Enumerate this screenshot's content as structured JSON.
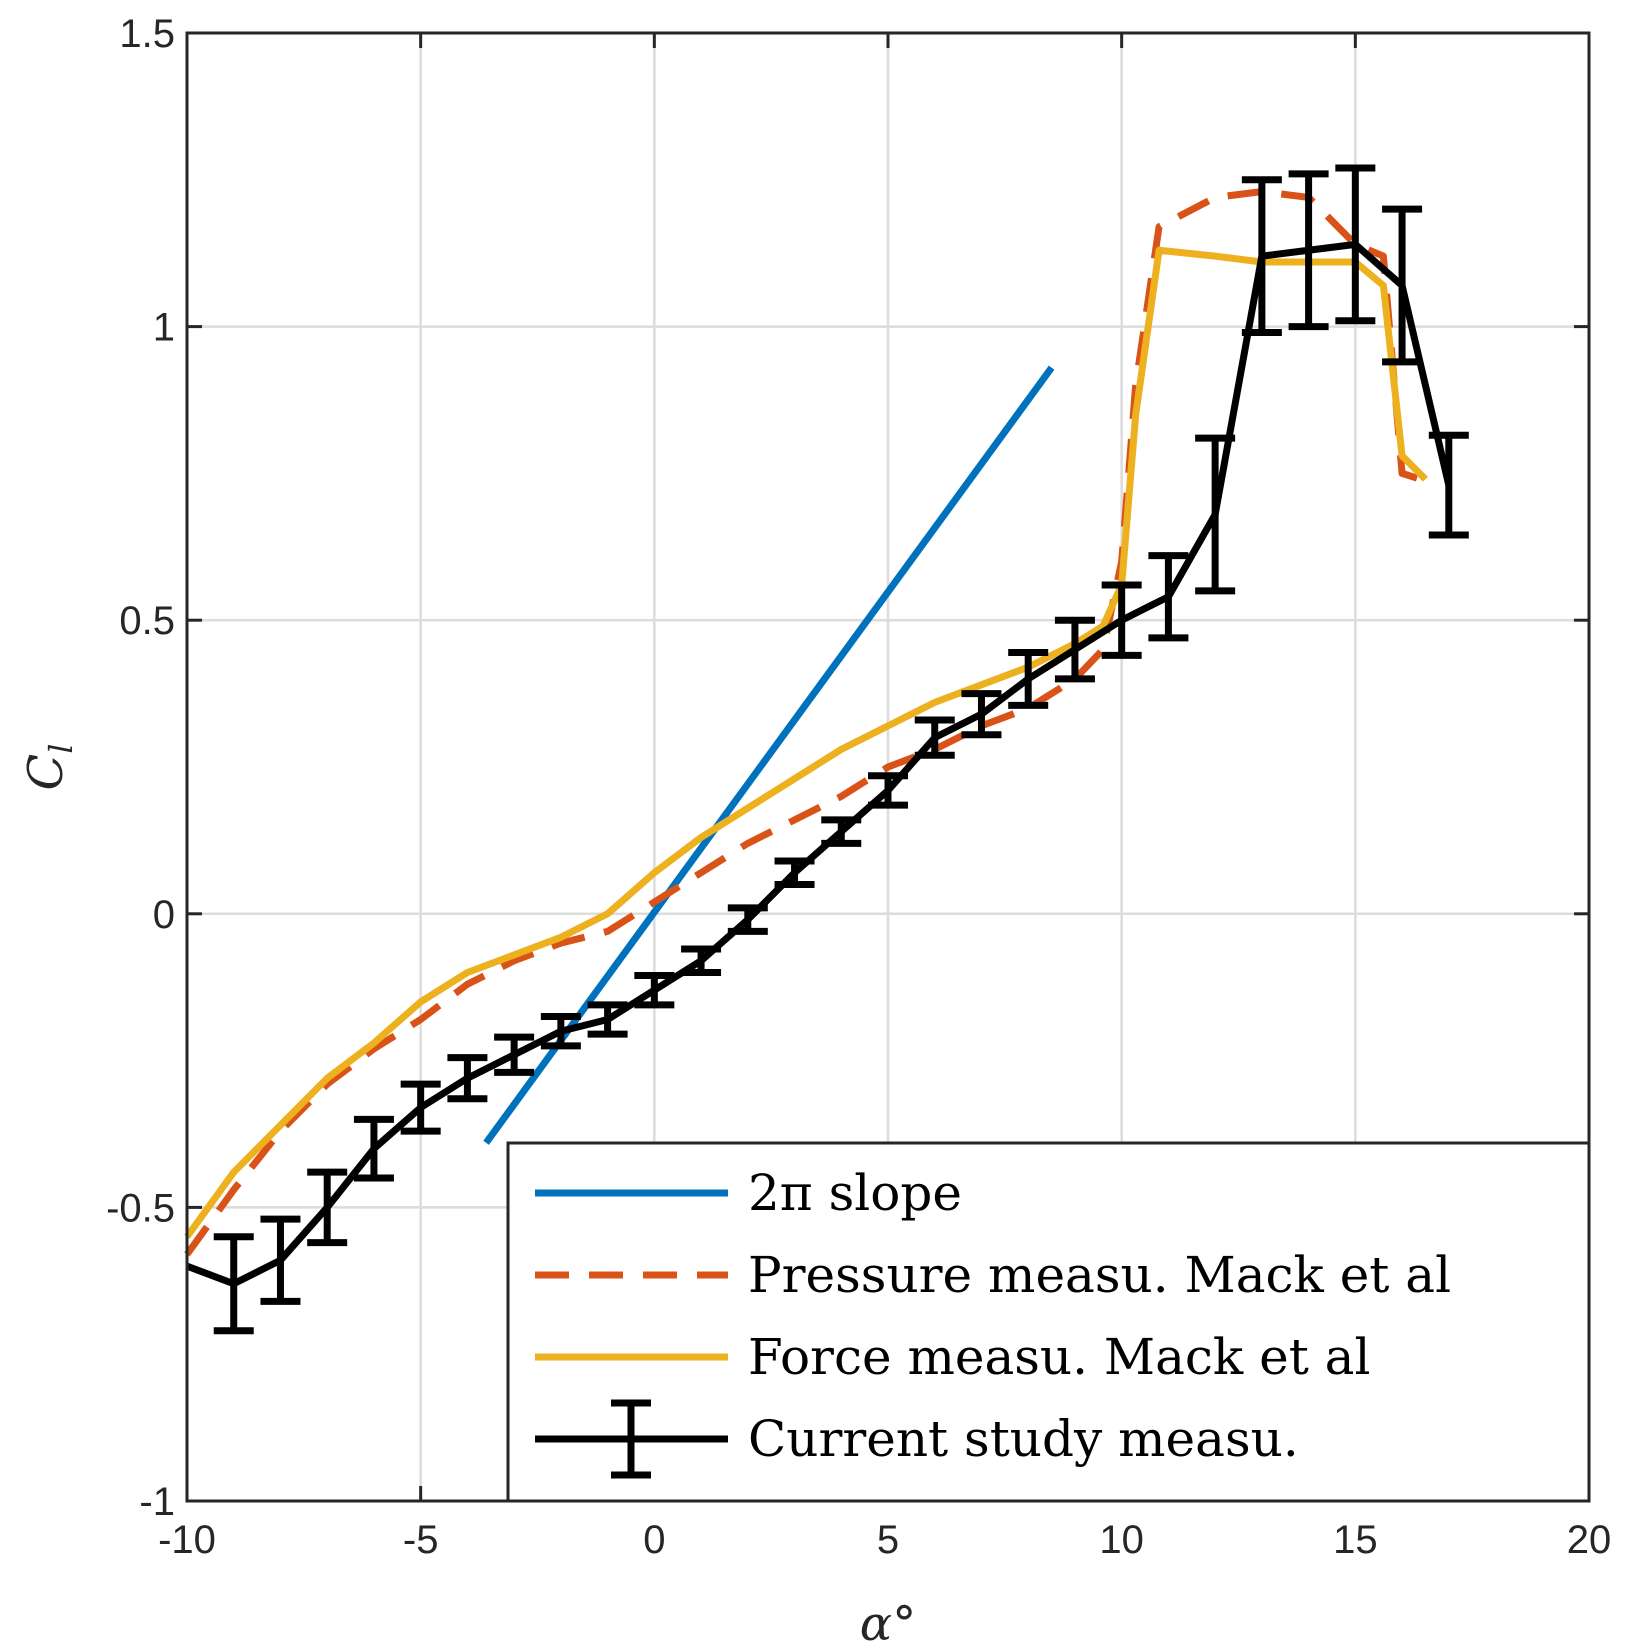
{
  "chart_data": {
    "type": "line",
    "title": "",
    "xlabel": "α°",
    "ylabel": "C_l",
    "ylabel_main": "C",
    "ylabel_sub": "l",
    "xlim": [
      -10,
      20
    ],
    "ylim": [
      -1,
      1.5
    ],
    "grid": true,
    "legend_position": "bottom-right",
    "xticks": [
      -10,
      -5,
      0,
      5,
      10,
      15,
      20
    ],
    "yticks": [
      -1,
      -0.5,
      0,
      0.5,
      1,
      1.5
    ],
    "xtick_labels": [
      "-10",
      "-5",
      "0",
      "5",
      "10",
      "15",
      "20"
    ],
    "ytick_labels": [
      "-1",
      "-0.5",
      "0",
      "0.5",
      "1",
      "1.5"
    ],
    "series": [
      {
        "name": "2π slope",
        "color": "#0072BD",
        "style": "solid",
        "x": [
          -3.6,
          8.5
        ],
        "y": [
          -0.39,
          0.93
        ]
      },
      {
        "name": "Pressure measu. Mack et al",
        "color": "#D95319",
        "style": "dashed",
        "x": [
          -10,
          -9,
          -8,
          -7,
          -6,
          -5,
          -4,
          -3,
          -2,
          -1,
          0,
          1,
          2,
          3,
          4,
          5,
          6,
          7,
          8,
          9,
          9.6,
          10,
          10.3,
          10.8,
          12,
          13,
          14,
          15,
          15.6,
          16,
          16.4
        ],
        "y": [
          -0.58,
          -0.47,
          -0.37,
          -0.29,
          -0.23,
          -0.18,
          -0.12,
          -0.08,
          -0.05,
          -0.03,
          0.02,
          0.07,
          0.12,
          0.16,
          0.2,
          0.25,
          0.28,
          0.32,
          0.35,
          0.4,
          0.45,
          0.6,
          0.9,
          1.17,
          1.22,
          1.23,
          1.22,
          1.14,
          1.12,
          0.75,
          0.74
        ]
      },
      {
        "name": "Force measu. Mack et al",
        "color": "#EDB120",
        "style": "solid",
        "x": [
          -10,
          -9,
          -8,
          -7,
          -6,
          -5,
          -4,
          -3,
          -2,
          -1,
          0,
          1,
          2,
          3,
          4,
          5,
          6,
          7,
          8,
          9,
          9.6,
          10,
          10.3,
          10.8,
          12,
          13,
          14,
          15,
          15.6,
          16,
          16.5
        ],
        "y": [
          -0.55,
          -0.44,
          -0.36,
          -0.28,
          -0.22,
          -0.15,
          -0.1,
          -0.07,
          -0.04,
          0,
          0.07,
          0.13,
          0.18,
          0.23,
          0.28,
          0.32,
          0.36,
          0.39,
          0.42,
          0.46,
          0.49,
          0.56,
          0.85,
          1.13,
          1.12,
          1.11,
          1.11,
          1.11,
          1.07,
          0.78,
          0.74
        ]
      },
      {
        "name": "Current study measu.",
        "color": "#000000",
        "style": "solid",
        "errorbars": true,
        "x": [
          -10,
          -9,
          -8,
          -7,
          -6,
          -5,
          -4,
          -3,
          -2,
          -1,
          0,
          1,
          2,
          3,
          4,
          5,
          6,
          7,
          8,
          9,
          10,
          11,
          12,
          13,
          14,
          15,
          16,
          17
        ],
        "y": [
          -0.6,
          -0.63,
          -0.59,
          -0.5,
          -0.4,
          -0.33,
          -0.28,
          -0.24,
          -0.2,
          -0.18,
          -0.13,
          -0.08,
          -0.01,
          0.07,
          0.14,
          0.21,
          0.3,
          0.34,
          0.4,
          0.45,
          0.5,
          0.54,
          0.68,
          1.12,
          1.13,
          1.14,
          1.07,
          0.73
        ],
        "err": [
          0,
          0.08,
          0.07,
          0.06,
          0.05,
          0.04,
          0.035,
          0.03,
          0.025,
          0.025,
          0.025,
          0.02,
          0.02,
          0.02,
          0.02,
          0.025,
          0.03,
          0.035,
          0.045,
          0.05,
          0.06,
          0.07,
          0.13,
          0.13,
          0.13,
          0.13,
          0.13,
          0.085
        ]
      }
    ],
    "legend": [
      {
        "label": "2π slope",
        "kind": "solid",
        "color": "#0072BD"
      },
      {
        "label": "Pressure measu. Mack et al",
        "kind": "dashed",
        "color": "#D95319"
      },
      {
        "label": "Force measu. Mack et al",
        "kind": "solid",
        "color": "#EDB120"
      },
      {
        "label": "Current study measu.",
        "kind": "errorbar",
        "color": "#000000"
      }
    ]
  }
}
